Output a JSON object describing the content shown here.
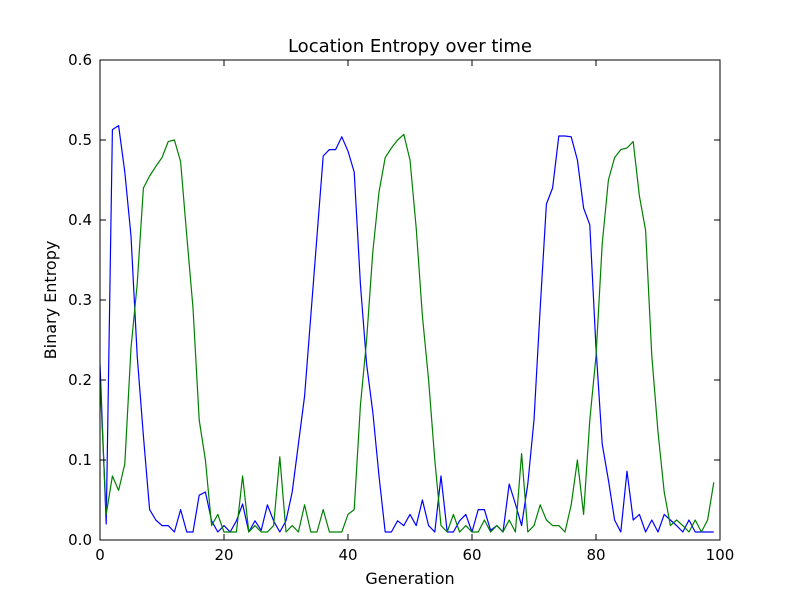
{
  "chart_data": {
    "type": "line",
    "title": "Location Entropy over time",
    "xlabel": "Generation",
    "ylabel": "Binary Entropy",
    "xlim": [
      0,
      100
    ],
    "ylim": [
      0,
      0.6
    ],
    "xticks": [
      0,
      20,
      40,
      60,
      80,
      100
    ],
    "yticks": [
      0.0,
      0.1,
      0.2,
      0.3,
      0.4,
      0.5,
      0.6
    ],
    "xtick_labels": [
      "0",
      "20",
      "40",
      "60",
      "80",
      "100"
    ],
    "ytick_labels": [
      "0.0",
      "0.1",
      "0.2",
      "0.3",
      "0.4",
      "0.5",
      "0.6"
    ],
    "grid": false,
    "series": [
      {
        "name": "blue",
        "color": "#0000ff",
        "x": [
          0,
          1,
          2,
          3,
          4,
          5,
          6,
          7,
          8,
          9,
          10,
          11,
          12,
          13,
          14,
          15,
          16,
          17,
          18,
          19,
          20,
          21,
          22,
          23,
          24,
          25,
          26,
          27,
          28,
          29,
          30,
          31,
          32,
          33,
          34,
          35,
          36,
          37,
          38,
          39,
          40,
          41,
          42,
          43,
          44,
          45,
          46,
          47,
          48,
          49,
          50,
          51,
          52,
          53,
          54,
          55,
          56,
          57,
          58,
          59,
          60,
          61,
          62,
          63,
          64,
          65,
          66,
          67,
          68,
          69,
          70,
          71,
          72,
          73,
          74,
          75,
          76,
          77,
          78,
          79,
          80,
          81,
          82,
          83,
          84,
          85,
          86,
          87,
          88,
          89,
          90,
          91,
          92,
          93,
          94,
          95,
          96,
          97,
          98,
          99
        ],
        "values": [
          0.22,
          0.02,
          0.513,
          0.518,
          0.46,
          0.38,
          0.23,
          0.13,
          0.038,
          0.025,
          0.018,
          0.018,
          0.01,
          0.038,
          0.01,
          0.01,
          0.056,
          0.06,
          0.024,
          0.01,
          0.018,
          0.01,
          0.024,
          0.045,
          0.01,
          0.024,
          0.012,
          0.044,
          0.024,
          0.01,
          0.024,
          0.06,
          0.12,
          0.18,
          0.28,
          0.38,
          0.48,
          0.488,
          0.488,
          0.504,
          0.486,
          0.46,
          0.32,
          0.22,
          0.16,
          0.08,
          0.01,
          0.01,
          0.024,
          0.018,
          0.032,
          0.018,
          0.05,
          0.018,
          0.01,
          0.08,
          0.01,
          0.01,
          0.024,
          0.032,
          0.01,
          0.038,
          0.038,
          0.012,
          0.018,
          0.01,
          0.07,
          0.045,
          0.018,
          0.07,
          0.15,
          0.29,
          0.42,
          0.44,
          0.505,
          0.505,
          0.504,
          0.475,
          0.415,
          0.394,
          0.24,
          0.12,
          0.075,
          0.025,
          0.01,
          0.086,
          0.025,
          0.032,
          0.01,
          0.025,
          0.01,
          0.032,
          0.025,
          0.018,
          0.01,
          0.025,
          0.01,
          0.01,
          0.01,
          0.01
        ]
      },
      {
        "name": "green",
        "color": "#008000",
        "x": [
          0,
          1,
          2,
          3,
          4,
          5,
          6,
          7,
          8,
          9,
          10,
          11,
          12,
          13,
          14,
          15,
          16,
          17,
          18,
          19,
          20,
          21,
          22,
          23,
          24,
          25,
          26,
          27,
          28,
          29,
          30,
          31,
          32,
          33,
          34,
          35,
          36,
          37,
          38,
          39,
          40,
          41,
          42,
          43,
          44,
          45,
          46,
          47,
          48,
          49,
          50,
          51,
          52,
          53,
          54,
          55,
          56,
          57,
          58,
          59,
          60,
          61,
          62,
          63,
          64,
          65,
          66,
          67,
          68,
          69,
          70,
          71,
          72,
          73,
          74,
          75,
          76,
          77,
          78,
          79,
          80,
          81,
          82,
          83,
          84,
          85,
          86,
          87,
          88,
          89,
          90,
          91,
          92,
          93,
          94,
          95,
          96,
          97,
          98,
          99
        ],
        "values": [
          0.2,
          0.032,
          0.08,
          0.062,
          0.095,
          0.24,
          0.32,
          0.44,
          0.455,
          0.467,
          0.478,
          0.498,
          0.5,
          0.473,
          0.38,
          0.29,
          0.15,
          0.1,
          0.018,
          0.032,
          0.01,
          0.01,
          0.01,
          0.08,
          0.01,
          0.018,
          0.01,
          0.01,
          0.018,
          0.104,
          0.01,
          0.018,
          0.01,
          0.044,
          0.01,
          0.01,
          0.038,
          0.01,
          0.01,
          0.01,
          0.032,
          0.038,
          0.168,
          0.25,
          0.36,
          0.435,
          0.478,
          0.49,
          0.5,
          0.507,
          0.475,
          0.39,
          0.28,
          0.2,
          0.1,
          0.018,
          0.01,
          0.032,
          0.01,
          0.018,
          0.01,
          0.01,
          0.025,
          0.01,
          0.018,
          0.01,
          0.025,
          0.01,
          0.108,
          0.01,
          0.018,
          0.044,
          0.025,
          0.018,
          0.018,
          0.01,
          0.044,
          0.1,
          0.032,
          0.15,
          0.23,
          0.37,
          0.45,
          0.478,
          0.488,
          0.49,
          0.498,
          0.43,
          0.387,
          0.23,
          0.135,
          0.06,
          0.018,
          0.025,
          0.018,
          0.01,
          0.025,
          0.01,
          0.025,
          0.072
        ]
      }
    ]
  }
}
